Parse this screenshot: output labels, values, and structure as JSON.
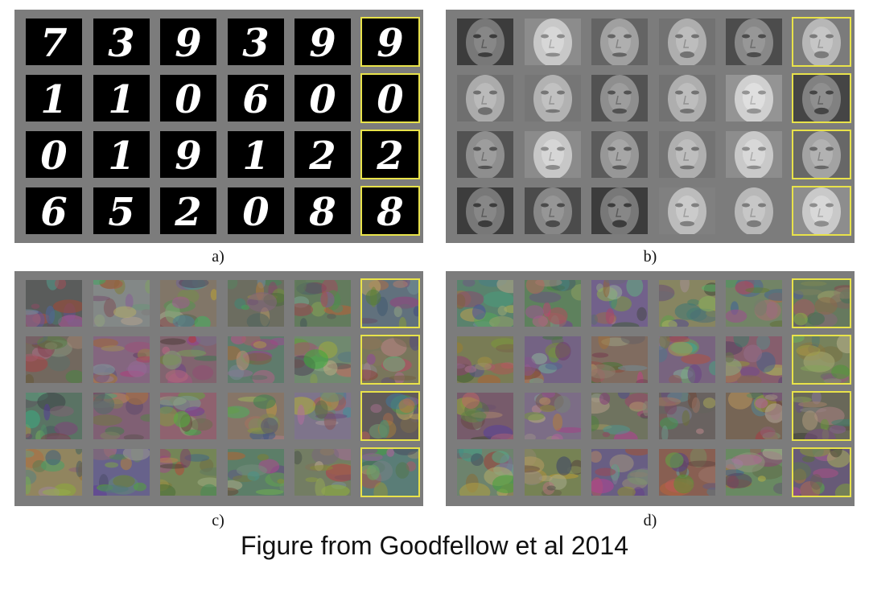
{
  "figure": {
    "caption": "Figure from Goodfellow et al 2014"
  },
  "panels": [
    {
      "label": "a)",
      "kind": "digits",
      "digits": [
        "7",
        "3",
        "9",
        "3",
        "9",
        "9",
        "1",
        "1",
        "0",
        "6",
        "0",
        "0",
        "0",
        "1",
        "9",
        "1",
        "2",
        "2",
        "6",
        "5",
        "2",
        "0",
        "8",
        "8"
      ]
    },
    {
      "label": "b)",
      "kind": "faces"
    },
    {
      "label": "c)",
      "kind": "cifar"
    },
    {
      "label": "d)",
      "kind": "cifar"
    }
  ],
  "colors": {
    "panel_bg": "#7c7c7c",
    "highlight": "#e8e24a"
  }
}
